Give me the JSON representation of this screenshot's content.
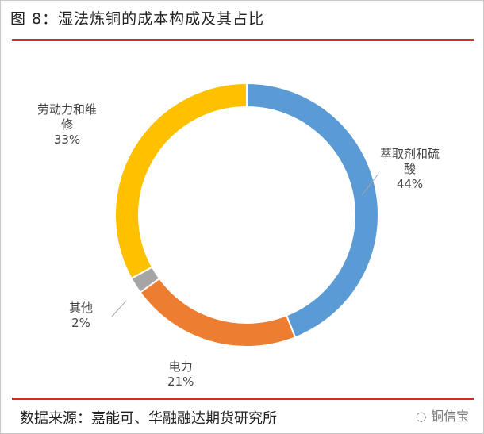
{
  "title": "图 8：湿法炼铜的成本构成及其占比",
  "source": "数据来源：嘉能可、华融融达期货研究所",
  "watermark": "铜信宝",
  "chart_data": {
    "type": "pie",
    "donut": true,
    "title": "湿法炼铜的成本构成及其占比",
    "categories": [
      "萃取剂和硫酸",
      "电力",
      "其他",
      "劳动力和维修"
    ],
    "values": [
      44,
      21,
      2,
      33
    ],
    "value_labels": [
      "44%",
      "21%",
      "2%",
      "33%"
    ],
    "label_lines": [
      "萃取剂和硫\n酸",
      "电力",
      "其他",
      "劳动力和维\n修"
    ],
    "colors": [
      "#5b9bd5",
      "#ed7d31",
      "#a5a5a5",
      "#ffc000"
    ]
  }
}
